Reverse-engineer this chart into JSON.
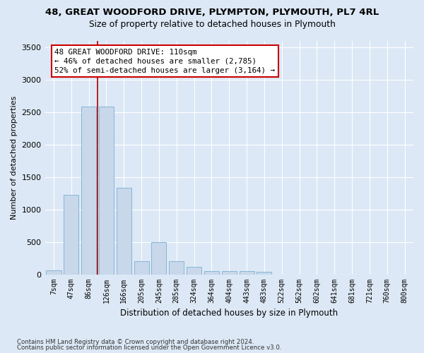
{
  "title1": "48, GREAT WOODFORD DRIVE, PLYMPTON, PLYMOUTH, PL7 4RL",
  "title2": "Size of property relative to detached houses in Plymouth",
  "xlabel": "Distribution of detached houses by size in Plymouth",
  "ylabel": "Number of detached properties",
  "bar_color": "#c8d8ea",
  "bar_edge_color": "#7aafd4",
  "vline_color": "#aa0000",
  "vline_x_index": 2,
  "annotation_line1": "48 GREAT WOODFORD DRIVE: 110sqm",
  "annotation_line2": "← 46% of detached houses are smaller (2,785)",
  "annotation_line3": "52% of semi-detached houses are larger (3,164) →",
  "annotation_box_edgecolor": "#cc0000",
  "categories": [
    "7sqm",
    "47sqm",
    "86sqm",
    "126sqm",
    "166sqm",
    "205sqm",
    "245sqm",
    "285sqm",
    "324sqm",
    "364sqm",
    "404sqm",
    "443sqm",
    "483sqm",
    "522sqm",
    "562sqm",
    "602sqm",
    "641sqm",
    "681sqm",
    "721sqm",
    "760sqm",
    "800sqm"
  ],
  "values": [
    55,
    1220,
    2580,
    2580,
    1330,
    200,
    490,
    200,
    110,
    50,
    50,
    50,
    40,
    0,
    0,
    0,
    0,
    0,
    0,
    0,
    0
  ],
  "ylim": [
    0,
    3600
  ],
  "yticks": [
    0,
    500,
    1000,
    1500,
    2000,
    2500,
    3000,
    3500
  ],
  "footer1": "Contains HM Land Registry data © Crown copyright and database right 2024.",
  "footer2": "Contains public sector information licensed under the Open Government Licence v3.0.",
  "bg_color": "#dce8f5",
  "grid_color": "#ffffff"
}
